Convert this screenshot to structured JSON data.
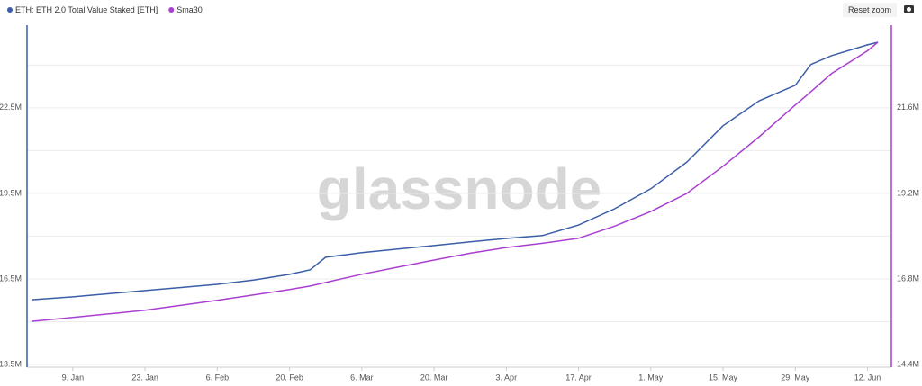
{
  "chart_data": {
    "type": "line",
    "watermark": "glassnode",
    "reset_button": "Reset zoom",
    "x": [
      1,
      9,
      16,
      23,
      30,
      37,
      44,
      51,
      55,
      58,
      65,
      72,
      79,
      86,
      93,
      100,
      107,
      114,
      121,
      128,
      135,
      142,
      149,
      152,
      156,
      163,
      165
    ],
    "xlim": [
      1,
      165
    ],
    "xticks": [
      {
        "value": 9,
        "label": "9. Jan"
      },
      {
        "value": 23,
        "label": "23. Jan"
      },
      {
        "value": 37,
        "label": "6. Feb"
      },
      {
        "value": 51,
        "label": "20. Feb"
      },
      {
        "value": 65,
        "label": "6. Mar"
      },
      {
        "value": 79,
        "label": "20. Mar"
      },
      {
        "value": 93,
        "label": "3. Apr"
      },
      {
        "value": 107,
        "label": "17. Apr"
      },
      {
        "value": 121,
        "label": "1. May"
      },
      {
        "value": 135,
        "label": "15. May"
      },
      {
        "value": 149,
        "label": "29. May"
      },
      {
        "value": 163,
        "label": "12. Jun"
      }
    ],
    "ylim": [
      13500000,
      25400000
    ],
    "yticks": [
      {
        "value": 13500000,
        "label": "13.5M"
      },
      {
        "value": 16500000,
        "label": "16.5M"
      },
      {
        "value": 19500000,
        "label": "19.5M"
      },
      {
        "value": 22500000,
        "label": "22.5M"
      }
    ],
    "ygrid": [
      15000000,
      18000000,
      21000000,
      24000000
    ],
    "y2lim": [
      14400000,
      23920000
    ],
    "y2ticks": [
      {
        "value": 14400000,
        "label": "14.4M"
      },
      {
        "value": 16800000,
        "label": "16.8M"
      },
      {
        "value": 19200000,
        "label": "19.2M"
      },
      {
        "value": 21600000,
        "label": "21.6M"
      }
    ],
    "grid": true,
    "series": [
      {
        "name": "ETH: ETH 2.0 Total Value Staked [ETH]",
        "color": "#3a5da8",
        "values": [
          15770000,
          15870000,
          15980000,
          16090000,
          16200000,
          16310000,
          16460000,
          16660000,
          16820000,
          17260000,
          17420000,
          17550000,
          17670000,
          17800000,
          17920000,
          18020000,
          18390000,
          18960000,
          19660000,
          20600000,
          21870000,
          22750000,
          23290000,
          24020000,
          24330000,
          24710000,
          24800000
        ]
      },
      {
        "name": "Sma30",
        "color": "#a93fd0",
        "axis": "y2",
        "values": [
          15610000,
          15720000,
          15820000,
          15920000,
          16060000,
          16200000,
          16350000,
          16500000,
          16600000,
          16700000,
          16930000,
          17130000,
          17330000,
          17520000,
          17680000,
          17800000,
          17940000,
          18280000,
          18690000,
          19200000,
          19960000,
          20790000,
          21680000,
          22050000,
          22560000,
          23200000,
          23440000
        ]
      }
    ]
  }
}
